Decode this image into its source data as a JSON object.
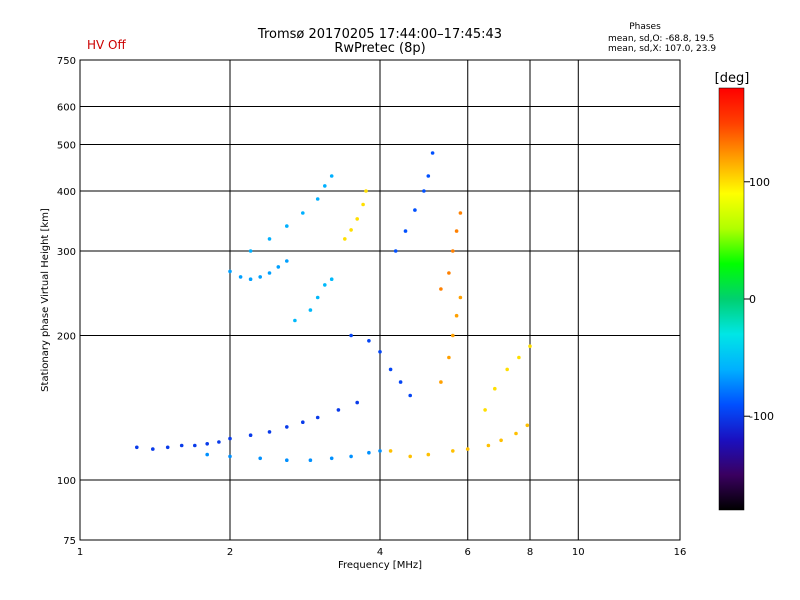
{
  "header": {
    "title_line1": "Tromsø 20170205 17:44:00–17:45:43",
    "title_line2": "RwPretec (8p)",
    "hv_status": "HV Off"
  },
  "phases": {
    "title": "Phases",
    "o_mode": "mean, sd,O: -68.8, 19.5",
    "x_mode": "mean, sd,X: 107.0, 23.9"
  },
  "chart_data": {
    "type": "scatter",
    "xlabel": "Frequency [MHz]",
    "ylabel": "Stationary phase Virtual Height [km]",
    "x_scale": "log",
    "y_scale": "log",
    "xlim": [
      1,
      16
    ],
    "ylim": [
      75,
      750
    ],
    "x_ticks": [
      1,
      2,
      4,
      6,
      8,
      10,
      16
    ],
    "y_ticks": [
      75,
      100,
      200,
      300,
      400,
      500,
      600,
      750
    ],
    "grid": true,
    "colorbar": {
      "label": "[deg]",
      "range": [
        -180,
        180
      ],
      "ticks": [
        100,
        0,
        -100
      ],
      "colors": [
        "#000000",
        "#3a0060",
        "#1a10c0",
        "#0050ff",
        "#00b0ff",
        "#00e6e6",
        "#00d070",
        "#00ff00",
        "#b0ff00",
        "#ffff00",
        "#ffa000",
        "#ff4000",
        "#ff0000"
      ]
    },
    "series": [
      {
        "points": [
          [
            1.3,
            117
          ],
          [
            1.4,
            116
          ],
          [
            1.5,
            117
          ],
          [
            1.6,
            118
          ],
          [
            1.7,
            118
          ],
          [
            1.8,
            119
          ],
          [
            1.9,
            120
          ],
          [
            2.0,
            122
          ],
          [
            2.2,
            124
          ],
          [
            2.4,
            126
          ],
          [
            2.6,
            129
          ],
          [
            2.8,
            132
          ],
          [
            3.0,
            135
          ],
          [
            3.3,
            140
          ],
          [
            3.6,
            145
          ]
        ],
        "phase": -100
      },
      {
        "points": [
          [
            1.8,
            113
          ],
          [
            2.0,
            112
          ],
          [
            2.3,
            111
          ],
          [
            2.6,
            110
          ],
          [
            2.9,
            110
          ],
          [
            3.2,
            111
          ],
          [
            3.5,
            112
          ],
          [
            3.8,
            114
          ],
          [
            4.0,
            115
          ]
        ],
        "phase": -70
      },
      {
        "points": [
          [
            2.2,
            300
          ],
          [
            2.4,
            318
          ],
          [
            2.6,
            338
          ],
          [
            2.8,
            360
          ],
          [
            3.0,
            385
          ],
          [
            3.1,
            410
          ],
          [
            3.2,
            430
          ]
        ],
        "phase": -60
      },
      {
        "points": [
          [
            2.0,
            272
          ],
          [
            2.1,
            265
          ],
          [
            2.2,
            262
          ],
          [
            2.3,
            265
          ],
          [
            2.4,
            270
          ],
          [
            2.5,
            278
          ],
          [
            2.6,
            286
          ]
        ],
        "phase": -65
      },
      {
        "points": [
          [
            2.7,
            215
          ],
          [
            2.9,
            226
          ],
          [
            3.0,
            240
          ],
          [
            3.1,
            255
          ],
          [
            3.2,
            262
          ]
        ],
        "phase": -55
      },
      {
        "points": [
          [
            3.4,
            318
          ],
          [
            3.5,
            332
          ],
          [
            3.6,
            350
          ],
          [
            3.7,
            375
          ],
          [
            3.75,
            400
          ]
        ],
        "phase": 100
      },
      {
        "points": [
          [
            4.2,
            115
          ],
          [
            4.6,
            112
          ],
          [
            5.0,
            113
          ],
          [
            5.6,
            115
          ],
          [
            6.0,
            116
          ],
          [
            6.6,
            118
          ],
          [
            7.0,
            121
          ],
          [
            7.5,
            125
          ],
          [
            7.9,
            130
          ]
        ],
        "phase": 110
      },
      {
        "points": [
          [
            4.3,
            300
          ],
          [
            4.5,
            330
          ],
          [
            4.7,
            365
          ],
          [
            4.9,
            400
          ],
          [
            5.0,
            430
          ],
          [
            5.1,
            480
          ]
        ],
        "phase": -90
      },
      {
        "points": [
          [
            5.3,
            250
          ],
          [
            5.5,
            270
          ],
          [
            5.6,
            300
          ],
          [
            5.7,
            330
          ],
          [
            5.8,
            360
          ]
        ],
        "phase": 130
      },
      {
        "points": [
          [
            5.3,
            160
          ],
          [
            5.5,
            180
          ],
          [
            5.6,
            200
          ],
          [
            5.7,
            220
          ],
          [
            5.8,
            240
          ]
        ],
        "phase": 120
      },
      {
        "points": [
          [
            6.5,
            140
          ],
          [
            6.8,
            155
          ],
          [
            7.2,
            170
          ],
          [
            7.6,
            180
          ],
          [
            8.0,
            190
          ]
        ],
        "phase": 100
      },
      {
        "points": [
          [
            3.5,
            200
          ],
          [
            3.8,
            195
          ],
          [
            4.0,
            185
          ],
          [
            4.2,
            170
          ],
          [
            4.4,
            160
          ],
          [
            4.6,
            150
          ]
        ],
        "phase": -95
      }
    ]
  }
}
